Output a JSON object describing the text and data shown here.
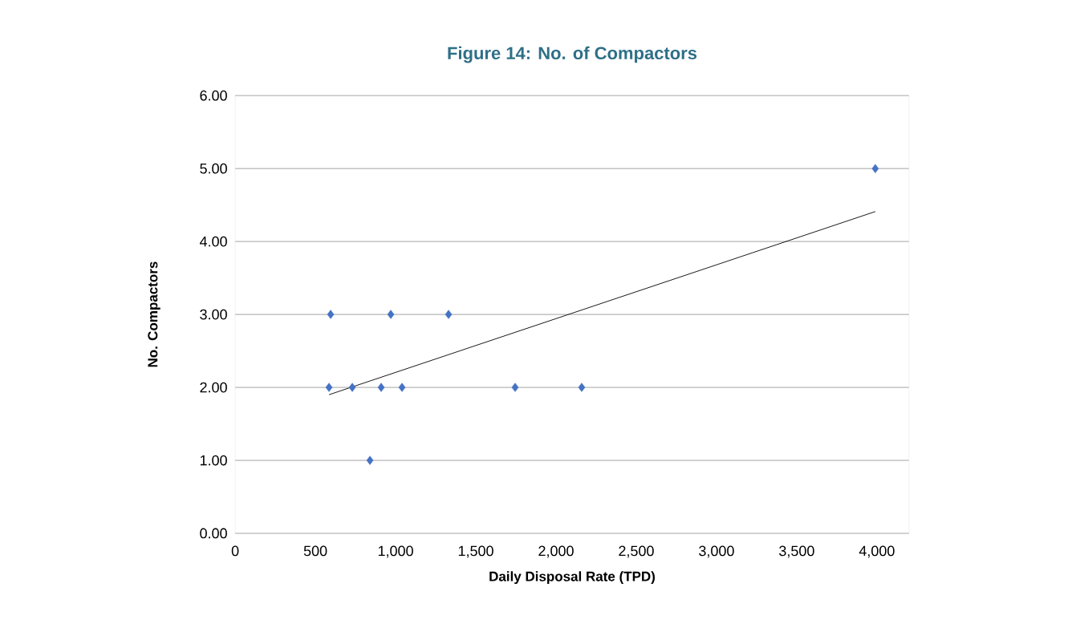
{
  "chart_data": {
    "type": "scatter",
    "title": "Figure 14: No. of Compactors",
    "xlabel": "Daily Disposal Rate (TPD)",
    "ylabel": "No. Compactors",
    "xlim": [
      0,
      4200
    ],
    "xticks": [
      0,
      {
        "value": 500,
        "label": "500"
      },
      {
        "value": 1000,
        "label": "1,000"
      },
      {
        "value": 1500,
        "label": "1,500"
      },
      {
        "value": 2000,
        "label": "2,000"
      },
      {
        "value": 2500,
        "label": "2,500"
      },
      {
        "value": 3000,
        "label": "3,000"
      },
      {
        "value": 3500,
        "label": "3,500"
      },
      {
        "value": 4000,
        "label": "4,000"
      }
    ],
    "ylim": [
      0,
      6
    ],
    "yticks": [
      {
        "value": 0,
        "label": "0.00"
      },
      {
        "value": 1,
        "label": "1.00"
      },
      {
        "value": 2,
        "label": "2.00"
      },
      {
        "value": 3,
        "label": "3.00"
      },
      {
        "value": 4,
        "label": "4.00"
      },
      {
        "value": 5,
        "label": "5.00"
      },
      {
        "value": 6,
        "label": "6.00"
      }
    ],
    "grid": "y",
    "series": [
      {
        "color": "#4472c4",
        "marker": "diamond",
        "x": [
          595,
          970,
          1330,
          585,
          730,
          910,
          1040,
          1745,
          2160,
          840,
          3990
        ],
        "values": [
          3,
          3,
          3,
          2,
          2,
          2,
          2,
          2,
          2,
          1,
          5
        ]
      },
      {
        "type": "line",
        "color": "#000000",
        "marker": "none",
        "line_style": "solid",
        "x": [
          585,
          3990
        ],
        "values": [
          1.9,
          4.41
        ]
      }
    ]
  }
}
